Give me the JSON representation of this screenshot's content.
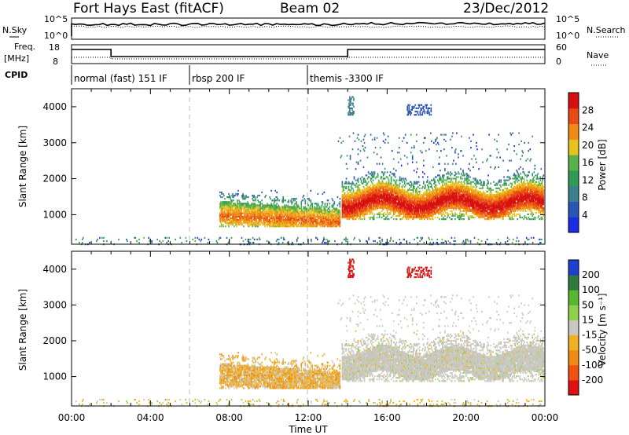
{
  "header": {
    "station": "Fort Hays East (fitACF)",
    "beam": "Beam 02",
    "date": "23/Dec/2012"
  },
  "panels": {
    "nsky": {
      "left_label": "N.Sky",
      "right_label": "N.Search",
      "left_ticks": [
        "10^5",
        "10^0"
      ],
      "right_ticks": [
        "10^5",
        "10^0"
      ]
    },
    "freq": {
      "left_label_1": "Freq.",
      "left_label_2": "[MHz]",
      "right_label": "Nave",
      "left_ticks": [
        "18",
        "8"
      ],
      "right_ticks": [
        "60",
        "0"
      ]
    },
    "cpid": {
      "label": "CPID",
      "modes": [
        "normal (fast) 151 IF",
        "rbsp 200 IF",
        "themis -3300 IF"
      ]
    }
  },
  "colors": {
    "power_scale": [
      "#1c2be6",
      "#2b55b5",
      "#3a7f8a",
      "#2f9a55",
      "#58b04a",
      "#e8c21c",
      "#f08a14",
      "#e94a14",
      "#d81010"
    ],
    "velocity_scale": [
      "#1e3fd0",
      "#2f7a3a",
      "#56b62d",
      "#8fd04a",
      "#c8c8c0",
      "#f0b020",
      "#f08a14",
      "#f05010",
      "#e01010"
    ]
  },
  "chart_data": [
    {
      "type": "heatmap",
      "title": "Power",
      "xlabel": "",
      "ylabel": "Slant Range [km]",
      "x_ticks": [
        "00:00",
        "04:00",
        "08:00",
        "12:00",
        "16:00",
        "20:00",
        "00:00"
      ],
      "y_ticks": [
        "1000",
        "2000",
        "3000",
        "4000"
      ],
      "y_range_km": [
        180,
        4500
      ],
      "x_range_hours": [
        0,
        24
      ],
      "colorbar": {
        "label": "Power [dB]",
        "ticks": [
          "28",
          "24",
          "20",
          "16",
          "12",
          "8",
          "4"
        ],
        "range": [
          0,
          32
        ]
      }
    },
    {
      "type": "heatmap",
      "title": "Velocity",
      "xlabel": "Time UT",
      "ylabel": "Slant Range [km]",
      "x_ticks": [
        "00:00",
        "04:00",
        "08:00",
        "12:00",
        "16:00",
        "20:00",
        "00:00"
      ],
      "y_ticks": [
        "1000",
        "2000",
        "3000",
        "4000"
      ],
      "y_range_km": [
        180,
        4500
      ],
      "x_range_hours": [
        0,
        24
      ],
      "colorbar": {
        "label": "Velocity [m s⁻¹]",
        "ticks": [
          "200",
          "100",
          "50",
          "15",
          "-15",
          "-50",
          "-100",
          "-200"
        ],
        "range": [
          -250,
          250
        ]
      }
    }
  ]
}
